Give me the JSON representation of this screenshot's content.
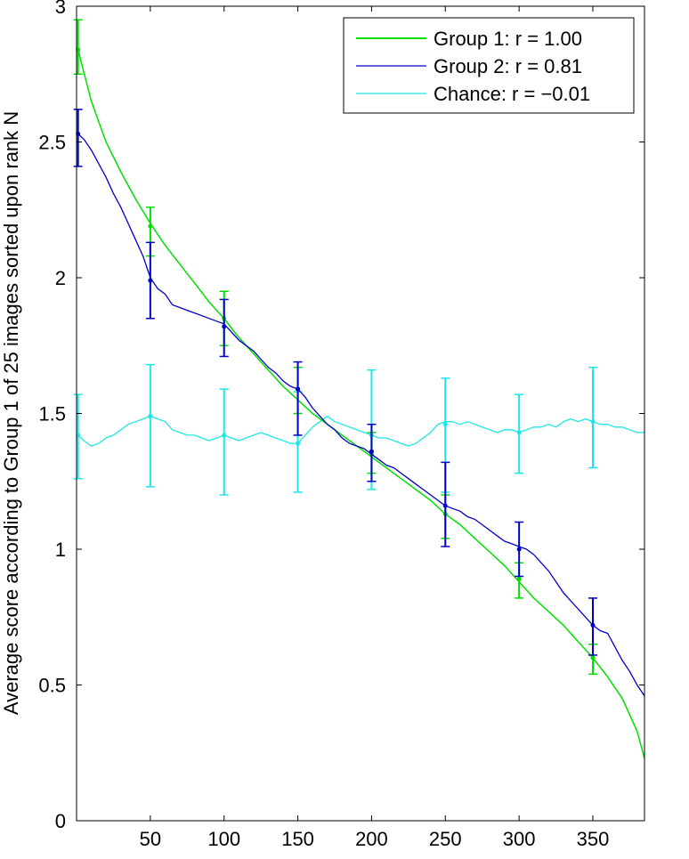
{
  "chart_data": {
    "type": "line",
    "title": "",
    "xlabel": "",
    "ylabel": "Average score according to Group 1 of 25 images sorted upon rank N",
    "xlim": [
      0,
      385
    ],
    "ylim": [
      0,
      3
    ],
    "xticks": [
      50,
      100,
      150,
      200,
      250,
      300,
      350
    ],
    "xtick_labels": [
      "50",
      "100",
      "150",
      "200",
      "250",
      "300",
      "350"
    ],
    "yticks": [
      0,
      0.5,
      1,
      1.5,
      2,
      2.5,
      3
    ],
    "ytick_labels": [
      "0",
      "0.5",
      "1",
      "1.5",
      "2",
      "2.5",
      "3"
    ],
    "grid": false,
    "legend_position": "top-right",
    "series": [
      {
        "name": "Group 1: r = 1.00",
        "color": "#00e000",
        "x": [
          1,
          10,
          20,
          30,
          40,
          50,
          60,
          70,
          80,
          90,
          100,
          110,
          120,
          130,
          140,
          150,
          160,
          170,
          180,
          190,
          200,
          210,
          220,
          230,
          240,
          250,
          260,
          270,
          280,
          290,
          300,
          310,
          320,
          330,
          340,
          350,
          360,
          370,
          380,
          385
        ],
        "y": [
          2.84,
          2.65,
          2.5,
          2.39,
          2.29,
          2.2,
          2.12,
          2.05,
          1.98,
          1.91,
          1.85,
          1.78,
          1.72,
          1.66,
          1.6,
          1.55,
          1.5,
          1.46,
          1.42,
          1.38,
          1.34,
          1.3,
          1.26,
          1.22,
          1.18,
          1.13,
          1.09,
          1.04,
          0.99,
          0.94,
          0.88,
          0.82,
          0.77,
          0.72,
          0.66,
          0.6,
          0.53,
          0.45,
          0.33,
          0.23
        ],
        "markers": [
          {
            "x": 1,
            "y": 2.84,
            "lower": 2.75,
            "upper": 2.95
          },
          {
            "x": 50,
            "y": 2.19,
            "lower": 2.08,
            "upper": 2.26
          },
          {
            "x": 100,
            "y": 1.85,
            "lower": 1.75,
            "upper": 1.95
          },
          {
            "x": 150,
            "y": 1.59,
            "lower": 1.5,
            "upper": 1.67
          },
          {
            "x": 200,
            "y": 1.35,
            "lower": 1.28,
            "upper": 1.43
          },
          {
            "x": 250,
            "y": 1.13,
            "lower": 1.04,
            "upper": 1.2
          },
          {
            "x": 300,
            "y": 0.89,
            "lower": 0.82,
            "upper": 0.95
          },
          {
            "x": 350,
            "y": 0.6,
            "lower": 0.54,
            "upper": 0.65
          }
        ]
      },
      {
        "name": "Group 2: r = 0.81",
        "color": "#0000c8",
        "x": [
          1,
          5,
          10,
          15,
          20,
          25,
          30,
          35,
          40,
          45,
          50,
          55,
          60,
          65,
          70,
          75,
          80,
          85,
          90,
          95,
          100,
          105,
          110,
          115,
          120,
          125,
          130,
          135,
          140,
          145,
          150,
          155,
          160,
          165,
          170,
          175,
          180,
          185,
          190,
          195,
          200,
          205,
          210,
          215,
          220,
          225,
          230,
          235,
          240,
          245,
          250,
          255,
          260,
          265,
          270,
          275,
          280,
          285,
          290,
          295,
          300,
          305,
          310,
          315,
          320,
          325,
          330,
          335,
          340,
          345,
          350,
          355,
          360,
          365,
          370,
          375,
          380,
          385
        ],
        "y": [
          2.53,
          2.51,
          2.47,
          2.42,
          2.37,
          2.31,
          2.26,
          2.2,
          2.14,
          2.08,
          2.0,
          1.96,
          1.94,
          1.9,
          1.89,
          1.88,
          1.87,
          1.86,
          1.85,
          1.84,
          1.83,
          1.8,
          1.77,
          1.75,
          1.73,
          1.7,
          1.67,
          1.65,
          1.62,
          1.6,
          1.59,
          1.56,
          1.52,
          1.49,
          1.46,
          1.44,
          1.41,
          1.39,
          1.38,
          1.37,
          1.35,
          1.33,
          1.31,
          1.3,
          1.28,
          1.26,
          1.24,
          1.22,
          1.2,
          1.18,
          1.16,
          1.15,
          1.14,
          1.12,
          1.11,
          1.09,
          1.07,
          1.05,
          1.03,
          1.02,
          1.01,
          1.0,
          0.98,
          0.95,
          0.92,
          0.88,
          0.84,
          0.81,
          0.78,
          0.75,
          0.72,
          0.7,
          0.69,
          0.64,
          0.59,
          0.55,
          0.5,
          0.46
        ],
        "markers": [
          {
            "x": 1,
            "y": 2.53,
            "lower": 2.41,
            "upper": 2.62
          },
          {
            "x": 50,
            "y": 1.99,
            "lower": 1.85,
            "upper": 2.13
          },
          {
            "x": 100,
            "y": 1.82,
            "lower": 1.71,
            "upper": 1.92
          },
          {
            "x": 150,
            "y": 1.59,
            "lower": 1.42,
            "upper": 1.69
          },
          {
            "x": 200,
            "y": 1.36,
            "lower": 1.25,
            "upper": 1.46
          },
          {
            "x": 250,
            "y": 1.16,
            "lower": 1.01,
            "upper": 1.32
          },
          {
            "x": 300,
            "y": 1.0,
            "lower": 0.9,
            "upper": 1.1
          },
          {
            "x": 350,
            "y": 0.72,
            "lower": 0.61,
            "upper": 0.82
          }
        ]
      },
      {
        "name": "Chance: r = −0.01",
        "color": "#1ee6e6",
        "x": [
          1,
          5,
          10,
          15,
          20,
          25,
          30,
          35,
          40,
          45,
          50,
          55,
          60,
          65,
          70,
          75,
          80,
          85,
          90,
          95,
          100,
          105,
          110,
          115,
          120,
          125,
          130,
          135,
          140,
          145,
          150,
          155,
          160,
          165,
          170,
          175,
          180,
          185,
          190,
          195,
          200,
          205,
          210,
          215,
          220,
          225,
          230,
          235,
          240,
          245,
          250,
          255,
          260,
          265,
          270,
          275,
          280,
          285,
          290,
          295,
          300,
          305,
          310,
          315,
          320,
          325,
          330,
          335,
          340,
          345,
          350,
          355,
          360,
          365,
          370,
          375,
          380,
          385
        ],
        "y": [
          1.42,
          1.4,
          1.38,
          1.39,
          1.41,
          1.42,
          1.44,
          1.46,
          1.47,
          1.48,
          1.49,
          1.48,
          1.47,
          1.44,
          1.43,
          1.42,
          1.42,
          1.41,
          1.4,
          1.41,
          1.42,
          1.41,
          1.4,
          1.41,
          1.42,
          1.43,
          1.42,
          1.41,
          1.4,
          1.39,
          1.39,
          1.42,
          1.45,
          1.47,
          1.49,
          1.47,
          1.46,
          1.45,
          1.44,
          1.43,
          1.42,
          1.41,
          1.41,
          1.4,
          1.39,
          1.38,
          1.39,
          1.41,
          1.43,
          1.46,
          1.47,
          1.47,
          1.46,
          1.47,
          1.46,
          1.45,
          1.44,
          1.43,
          1.44,
          1.44,
          1.43,
          1.44,
          1.45,
          1.45,
          1.46,
          1.45,
          1.47,
          1.48,
          1.47,
          1.48,
          1.47,
          1.46,
          1.46,
          1.45,
          1.45,
          1.44,
          1.43,
          1.43
        ],
        "markers": [
          {
            "x": 1,
            "y": 1.42,
            "lower": 1.26,
            "upper": 1.57
          },
          {
            "x": 50,
            "y": 1.49,
            "lower": 1.23,
            "upper": 1.68
          },
          {
            "x": 100,
            "y": 1.42,
            "lower": 1.2,
            "upper": 1.59
          },
          {
            "x": 150,
            "y": 1.39,
            "lower": 1.21,
            "upper": 1.58
          },
          {
            "x": 200,
            "y": 1.42,
            "lower": 1.22,
            "upper": 1.66
          },
          {
            "x": 250,
            "y": 1.46,
            "lower": 1.21,
            "upper": 1.63
          },
          {
            "x": 300,
            "y": 1.43,
            "lower": 1.28,
            "upper": 1.57
          },
          {
            "x": 350,
            "y": 1.47,
            "lower": 1.3,
            "upper": 1.67
          }
        ]
      }
    ]
  }
}
